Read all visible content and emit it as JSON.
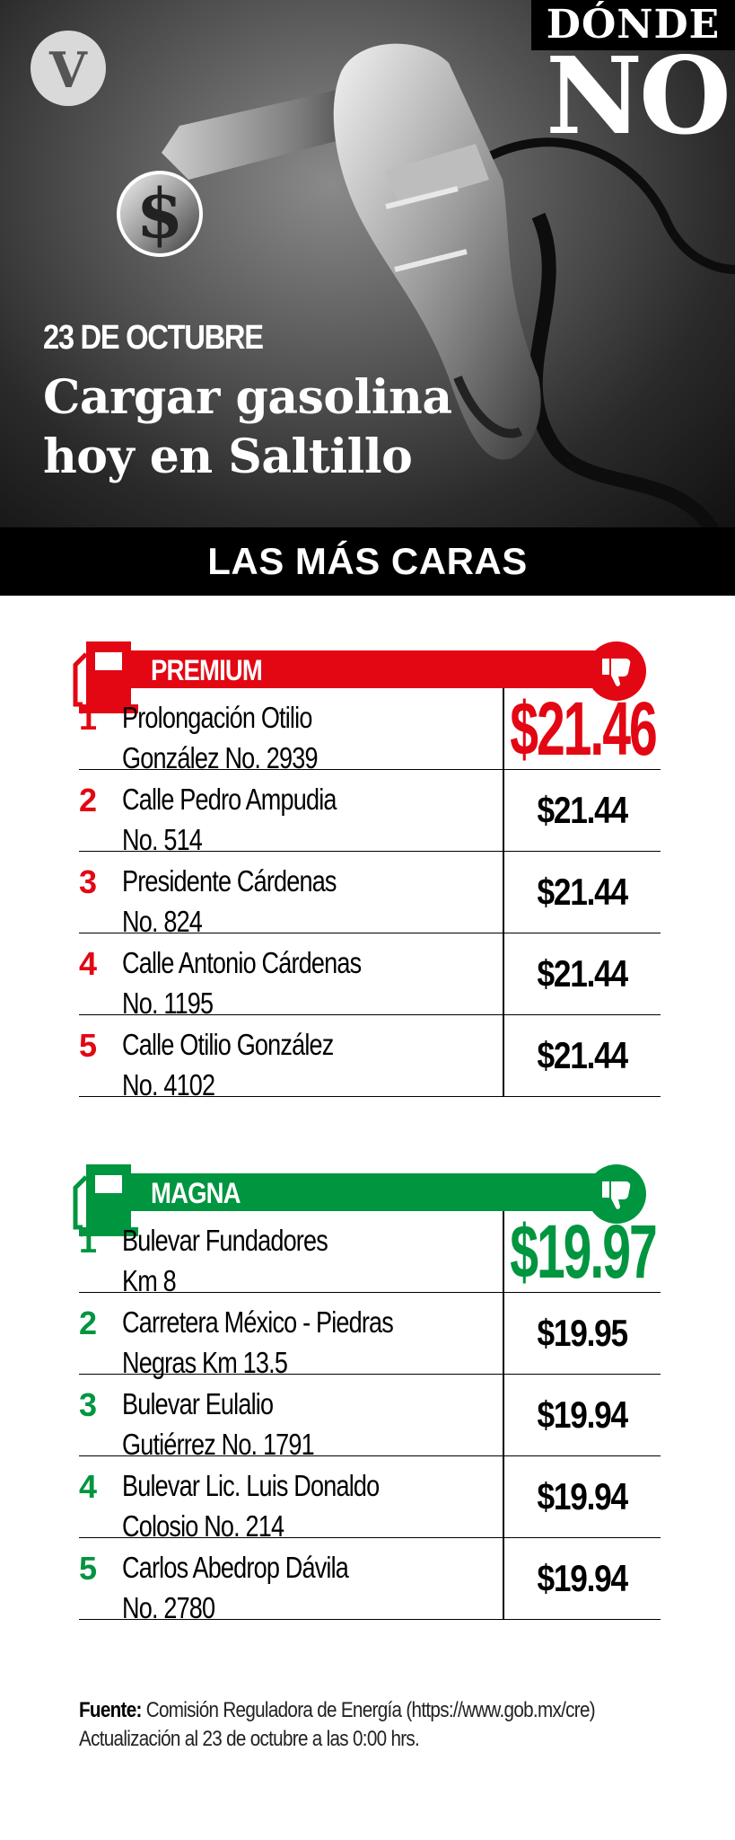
{
  "header": {
    "logo_letter": "V",
    "tag_top": "DÓNDE",
    "tag_big": "NO",
    "date": "23 DE OCTUBRE",
    "headline_line1": "Cargar gasolina",
    "headline_line2": "hoy en Saltillo",
    "banner": "LAS MÁS CARAS"
  },
  "colors": {
    "premium": "#e30613",
    "magna": "#00953f",
    "banner_bg": "#000000"
  },
  "premium": {
    "title": "PREMIUM",
    "rows": [
      {
        "rank": "1",
        "line1": "Prolongación Otilio",
        "line2": "González No. 2939",
        "price": "$21.46"
      },
      {
        "rank": "2",
        "line1": "Calle Pedro Ampudia",
        "line2": "No. 514",
        "price": "$21.44"
      },
      {
        "rank": "3",
        "line1": "Presidente Cárdenas",
        "line2": "No. 824",
        "price": "$21.44"
      },
      {
        "rank": "4",
        "line1": "Calle Antonio Cárdenas",
        "line2": "No. 1195",
        "price": "$21.44"
      },
      {
        "rank": "5",
        "line1": "Calle Otilio González",
        "line2": "No. 4102",
        "price": "$21.44"
      }
    ]
  },
  "magna": {
    "title": "MAGNA",
    "rows": [
      {
        "rank": "1",
        "line1": "Bulevar Fundadores",
        "line2": "Km 8",
        "price": "$19.97"
      },
      {
        "rank": "2",
        "line1": "Carretera México - Piedras",
        "line2": "Negras Km 13.5",
        "price": "$19.95"
      },
      {
        "rank": "3",
        "line1": "Bulevar Eulalio",
        "line2": "Gutiérrez No. 1791",
        "price": "$19.94"
      },
      {
        "rank": "4",
        "line1": "Bulevar Lic. Luis Donaldo",
        "line2": "Colosio No. 214",
        "price": "$19.94"
      },
      {
        "rank": "5",
        "line1": "Carlos Abedrop Dávila",
        "line2": "No. 2780",
        "price": "$19.94"
      }
    ]
  },
  "footer": {
    "source_label": "Fuente:",
    "source_text": " Comisión Reguladora de Energía (https://www.gob.mx/cre)",
    "update": "Actualización al 23 de octubre a las 0:00 hrs."
  },
  "icons": {
    "logo": "logo-v-icon",
    "hero": "fuel-nozzle-dollar-icon",
    "section": "fuel-pump-icon",
    "thumb": "thumbs-down-icon"
  }
}
